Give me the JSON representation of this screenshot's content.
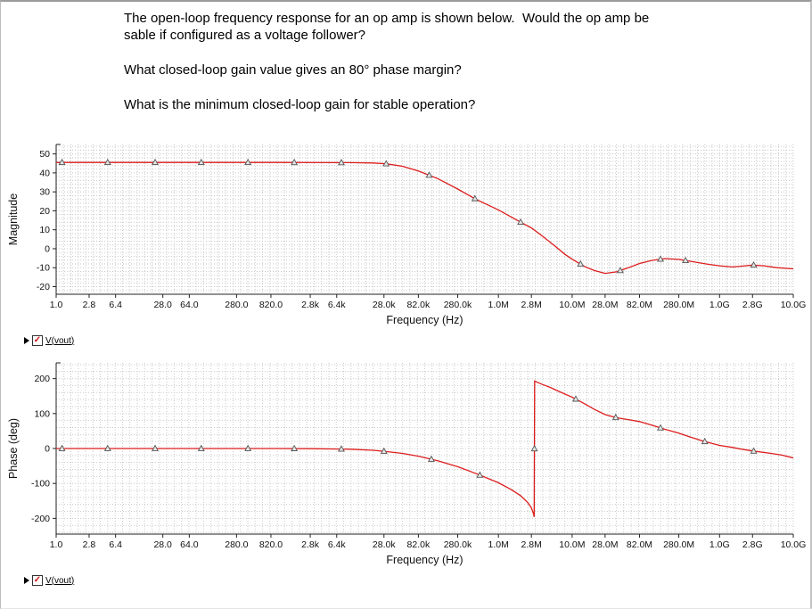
{
  "questions": [
    {
      "lines": [
        "The open-loop frequency response for an op amp is shown below.  Would the op amp be",
        "sable if configured as a voltage follower?"
      ]
    },
    {
      "lines": [
        "What closed-loop gain value gives an 80° phase margin?"
      ]
    },
    {
      "lines": [
        "What is the minimum closed-loop gain for stable operation?"
      ]
    }
  ],
  "icons": {
    "legend_arrow": "legend-arrow",
    "checkbox_check": "✓"
  },
  "colors": {
    "curve": "#dd1d1d",
    "grid": "#c9c9c9",
    "axis": "#222222"
  },
  "chart_data": [
    {
      "type": "line",
      "name": "magnitude",
      "title": "Open-loop magnitude response",
      "ylabel": "Magnitude",
      "xlabel": "Frequency (Hz)",
      "legend": "V(vout)",
      "x_scale": "log",
      "xlim_log10": [
        0,
        10
      ],
      "ylim": [
        -24,
        55
      ],
      "y_minor_step": 2,
      "y_ticks": [
        50,
        40,
        30,
        20,
        10,
        0,
        -10,
        -20
      ],
      "x_ticks": [
        {
          "label": "1.0",
          "value": 1.0
        },
        {
          "label": "2.8",
          "value": 2.8
        },
        {
          "label": "6.4",
          "value": 6.4
        },
        {
          "label": "28.0",
          "value": 28
        },
        {
          "label": "64.0",
          "value": 64
        },
        {
          "label": "280.0",
          "value": 280
        },
        {
          "label": "820.0",
          "value": 820
        },
        {
          "label": "2.8k",
          "value": 2800
        },
        {
          "label": "6.4k",
          "value": 6400
        },
        {
          "label": "28.0k",
          "value": 28000
        },
        {
          "label": "82.0k",
          "value": 82000
        },
        {
          "label": "280.0k",
          "value": 280000
        },
        {
          "label": "1.0M",
          "value": 1000000.0
        },
        {
          "label": "2.8M",
          "value": 2800000.0
        },
        {
          "label": "10.0M",
          "value": 10000000.0
        },
        {
          "label": "28.0M",
          "value": 28000000.0
        },
        {
          "label": "82.0M",
          "value": 82000000.0
        },
        {
          "label": "280.0M",
          "value": 280000000.0
        },
        {
          "label": "1.0G",
          "value": 1000000000.0
        },
        {
          "label": "2.8G",
          "value": 2800000000.0
        },
        {
          "label": "10.0G",
          "value": 10000000000.0
        }
      ],
      "series": [
        {
          "name": "V(vout)",
          "color": "#dd1d1d",
          "points": [
            [
              1,
              45.5
            ],
            [
              100,
              45.5
            ],
            [
              1000,
              45.5
            ],
            [
              10000,
              45.4
            ],
            [
              20000,
              45.2
            ],
            [
              30000,
              44.8
            ],
            [
              50000,
              43.5
            ],
            [
              82000,
              41
            ],
            [
              150000,
              37
            ],
            [
              280000,
              31.5
            ],
            [
              500000,
              26
            ],
            [
              1000000.0,
              20.5
            ],
            [
              2000000.0,
              14
            ],
            [
              2800000.0,
              11
            ],
            [
              4000000.0,
              6.5
            ],
            [
              6000000.0,
              1
            ],
            [
              8000000.0,
              -3
            ],
            [
              10000000.0,
              -5.5
            ],
            [
              15000000.0,
              -9.5
            ],
            [
              20000000.0,
              -11.5
            ],
            [
              28000000.0,
              -13
            ],
            [
              40000000.0,
              -12.2
            ],
            [
              60000000.0,
              -9.8
            ],
            [
              82000000.0,
              -7.8
            ],
            [
              120000000.0,
              -6.2
            ],
            [
              180000000.0,
              -5.2
            ],
            [
              280000000.0,
              -5.6
            ],
            [
              400000000.0,
              -6.6
            ],
            [
              700000000.0,
              -8.2
            ],
            [
              1000000000.0,
              -9
            ],
            [
              1500000000.0,
              -9.6
            ],
            [
              2000000000.0,
              -9.2
            ],
            [
              2800000000.0,
              -8.6
            ],
            [
              4000000000.0,
              -9
            ],
            [
              6000000000.0,
              -10
            ],
            [
              10000000000.0,
              -10.6
            ]
          ],
          "marker_freqs": [
            1.2,
            5,
            22,
            93,
            400,
            1700,
            7400,
            30000,
            115000,
            480000,
            2000000.0,
            13000000.0,
            45000000.0,
            158000000.0,
            345000000.0,
            2900000000.0
          ]
        }
      ]
    },
    {
      "type": "line",
      "name": "phase",
      "title": "Open-loop phase response",
      "ylabel": "Phase (deg)",
      "xlabel": "Frequency (Hz)",
      "legend": "V(vout)",
      "x_scale": "log",
      "xlim_log10": [
        0,
        10
      ],
      "ylim": [
        -245,
        245
      ],
      "y_minor_step": 20,
      "y_ticks": [
        200,
        100,
        0,
        -100,
        -200
      ],
      "x_ticks": [
        {
          "label": "1.0",
          "value": 1.0
        },
        {
          "label": "2.8",
          "value": 2.8
        },
        {
          "label": "6.4",
          "value": 6.4
        },
        {
          "label": "28.0",
          "value": 28
        },
        {
          "label": "64.0",
          "value": 64
        },
        {
          "label": "280.0",
          "value": 280
        },
        {
          "label": "820.0",
          "value": 820
        },
        {
          "label": "2.8k",
          "value": 2800
        },
        {
          "label": "6.4k",
          "value": 6400
        },
        {
          "label": "28.0k",
          "value": 28000
        },
        {
          "label": "82.0k",
          "value": 82000
        },
        {
          "label": "280.0k",
          "value": 280000
        },
        {
          "label": "1.0M",
          "value": 1000000.0
        },
        {
          "label": "2.8M",
          "value": 2800000.0
        },
        {
          "label": "10.0M",
          "value": 10000000.0
        },
        {
          "label": "28.0M",
          "value": 28000000.0
        },
        {
          "label": "82.0M",
          "value": 82000000.0
        },
        {
          "label": "280.0M",
          "value": 280000000.0
        },
        {
          "label": "1.0G",
          "value": 1000000000.0
        },
        {
          "label": "2.8G",
          "value": 2800000000.0
        },
        {
          "label": "10.0G",
          "value": 10000000000.0
        }
      ],
      "series": [
        {
          "name": "V(vout)",
          "color": "#dd1d1d",
          "points": [
            [
              1,
              0
            ],
            [
              100,
              0
            ],
            [
              1000,
              0
            ],
            [
              3000,
              -0.5
            ],
            [
              10000,
              -2
            ],
            [
              20000,
              -5
            ],
            [
              28000,
              -8
            ],
            [
              50000,
              -14
            ],
            [
              82000,
              -22
            ],
            [
              150000,
              -35
            ],
            [
              280000,
              -52
            ],
            [
              500000,
              -72
            ],
            [
              1000000.0,
              -98
            ],
            [
              1500000.0,
              -118
            ],
            [
              2000000.0,
              -135
            ],
            [
              2500000.0,
              -155
            ],
            [
              2800000.0,
              -170
            ],
            [
              3000000.0,
              -188
            ],
            [
              3050000.0,
              -196
            ],
            [
              3100000.0,
              193
            ],
            [
              3500000.0,
              188
            ],
            [
              4000000.0,
              183
            ],
            [
              5000000.0,
              175
            ],
            [
              7000000.0,
              161
            ],
            [
              10000000.0,
              147
            ],
            [
              15000000.0,
              127
            ],
            [
              20000000.0,
              112
            ],
            [
              28000000.0,
              97
            ],
            [
              40000000.0,
              88
            ],
            [
              60000000.0,
              82
            ],
            [
              82000000.0,
              77
            ],
            [
              120000000.0,
              67
            ],
            [
              180000000.0,
              55
            ],
            [
              280000000.0,
              44
            ],
            [
              400000000.0,
              33
            ],
            [
              600000000.0,
              21
            ],
            [
              1000000000.0,
              9
            ],
            [
              1500000000.0,
              3
            ],
            [
              2000000000.0,
              -2
            ],
            [
              2800000000.0,
              -7
            ],
            [
              5000000000.0,
              -14
            ],
            [
              7000000000.0,
              -19
            ],
            [
              10000000000.0,
              -27
            ]
          ],
          "marker_freqs": [
            1.2,
            5,
            22,
            93,
            400,
            1700,
            7400,
            28000,
            123000,
            560000,
            3075000.0,
            11200000.0,
            39000000.0,
            158000000.0,
            630000000.0,
            2900000000.0
          ]
        }
      ]
    }
  ]
}
